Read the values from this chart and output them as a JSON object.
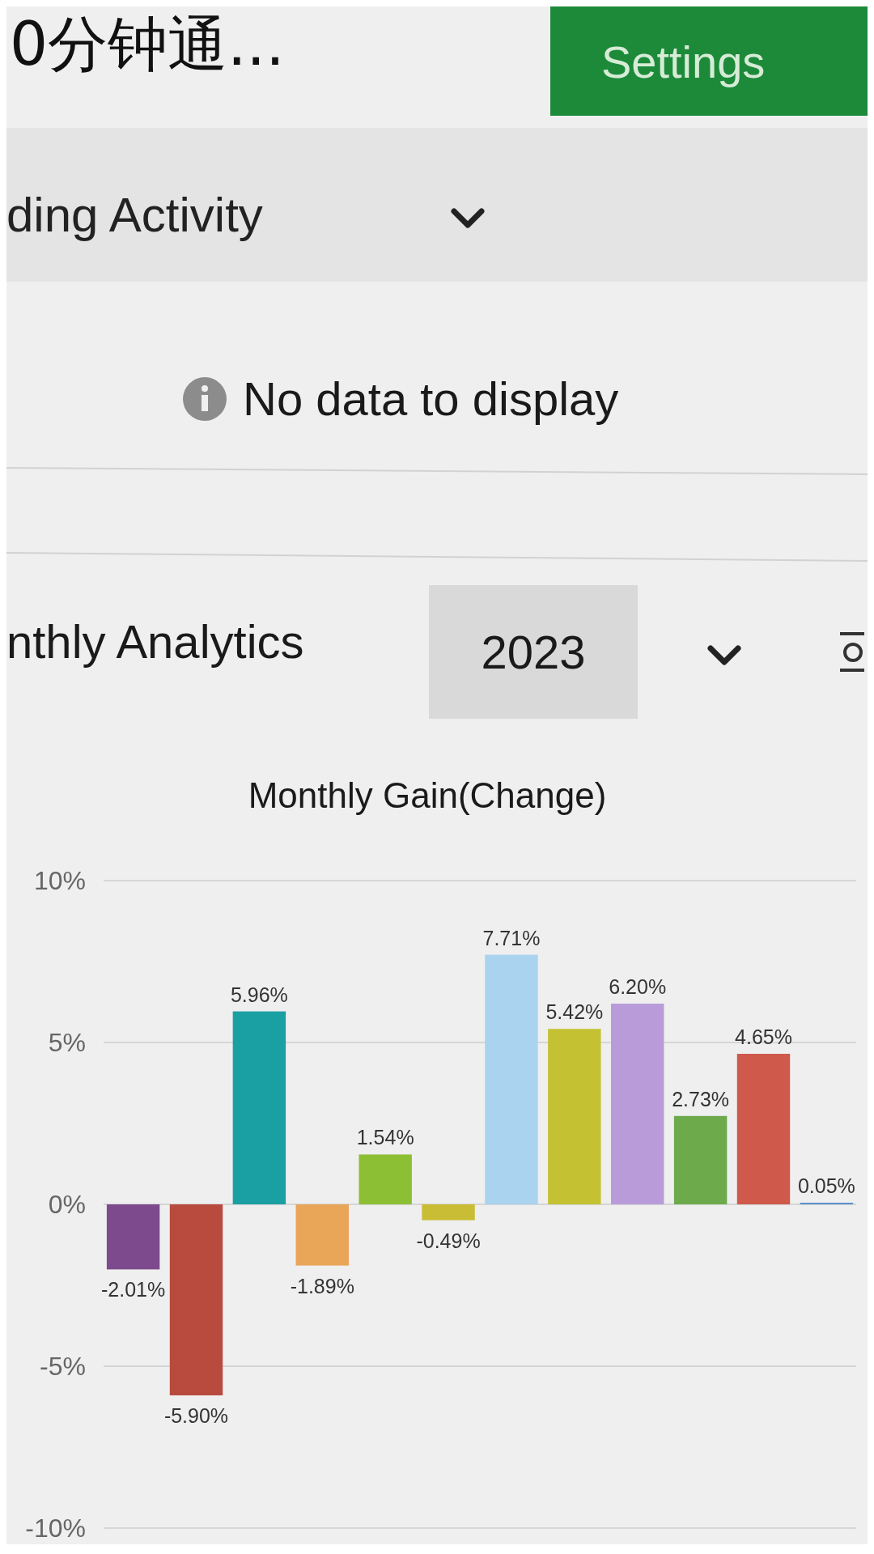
{
  "chart_data": [
    {
      "type": "other",
      "annotations": [
        "0分钟通...",
        "Settings",
        "ding Activity",
        "No data to display",
        "nthly Analytics",
        "2023"
      ]
    },
    {
      "type": "bar",
      "title": "Monthly Gain(Change)",
      "categories": [
        null,
        null,
        null,
        null,
        null,
        null,
        null,
        null,
        null,
        null,
        null,
        null
      ],
      "values": [
        -2.01,
        -5.9,
        5.96,
        -1.89,
        1.54,
        -0.49,
        7.71,
        5.42,
        6.2,
        2.73,
        4.65,
        0.05
      ],
      "value_labels": [
        "-2.01%",
        "-5.90%",
        "5.96%",
        "-1.89%",
        "1.54%",
        "-0.49%",
        "7.71%",
        "5.42%",
        "6.20%",
        "2.73%",
        "4.65%",
        "0.05%"
      ],
      "colors": [
        "#7e4a8e",
        "#b84a3e",
        "#1a9fa3",
        "#e9a558",
        "#8cbf34",
        "#c9bd35",
        "#a9d3ee",
        "#c4c233",
        "#b99bd9",
        "#6caa4c",
        "#cf5a4b",
        "#5b8fc9"
      ],
      "ylim": [
        -10,
        10
      ],
      "yticks": [
        {
          "value": 10,
          "label": "10%"
        },
        {
          "value": 5,
          "label": "5%"
        },
        {
          "value": 0,
          "label": "0%"
        },
        {
          "value": -5,
          "label": "-5%"
        },
        {
          "value": -10,
          "label": "-10%"
        }
      ],
      "grid": "y"
    }
  ]
}
